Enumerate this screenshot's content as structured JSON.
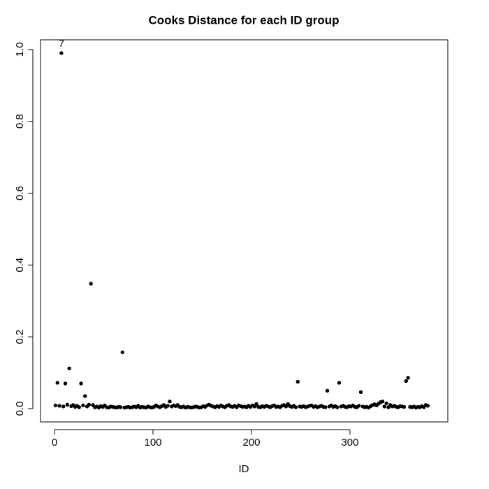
{
  "chart_data": {
    "type": "scatter",
    "title": "Cooks Distance for each ID group",
    "xlabel": "ID",
    "x": [
      1,
      3,
      5,
      7,
      9,
      11,
      13,
      15,
      17,
      19,
      21,
      23,
      25,
      27,
      29,
      31,
      33,
      35,
      37,
      39,
      41,
      43,
      45,
      47,
      49,
      51,
      53,
      55,
      57,
      59,
      61,
      63,
      65,
      67,
      69,
      71,
      73,
      75,
      77,
      79,
      81,
      83,
      85,
      87,
      89,
      91,
      93,
      95,
      97,
      99,
      101,
      103,
      105,
      107,
      109,
      111,
      113,
      115,
      117,
      119,
      121,
      123,
      125,
      127,
      129,
      131,
      133,
      135,
      137,
      139,
      141,
      143,
      145,
      147,
      149,
      151,
      153,
      155,
      157,
      159,
      161,
      163,
      165,
      167,
      169,
      171,
      173,
      175,
      177,
      179,
      181,
      183,
      185,
      187,
      189,
      191,
      193,
      195,
      197,
      199,
      201,
      203,
      205,
      207,
      209,
      211,
      213,
      215,
      217,
      219,
      221,
      223,
      225,
      227,
      229,
      231,
      233,
      235,
      237,
      239,
      241,
      243,
      245,
      247,
      249,
      251,
      253,
      255,
      257,
      259,
      261,
      263,
      265,
      267,
      269,
      271,
      273,
      275,
      277,
      279,
      281,
      283,
      285,
      287,
      289,
      291,
      293,
      295,
      297,
      299,
      301,
      303,
      305,
      307,
      309,
      311,
      313,
      315,
      317,
      319,
      321,
      323,
      325,
      327,
      329,
      331,
      333,
      335,
      337,
      339,
      341,
      343,
      345,
      347,
      349,
      351,
      353,
      355,
      357,
      359,
      361,
      363,
      365,
      367,
      369,
      371,
      373,
      375,
      377,
      379
    ],
    "y": [
      0.009,
      0.072,
      0.008,
      0.99,
      0.006,
      0.07,
      0.011,
      0.112,
      0.007,
      0.01,
      0.005,
      0.008,
      0.004,
      0.07,
      0.009,
      0.035,
      0.006,
      0.011,
      0.348,
      0.01,
      0.004,
      0.006,
      0.003,
      0.007,
      0.005,
      0.009,
      0.004,
      0.003,
      0.006,
      0.005,
      0.004,
      0.003,
      0.005,
      0.004,
      0.157,
      0.003,
      0.004,
      0.005,
      0.003,
      0.004,
      0.006,
      0.004,
      0.008,
      0.003,
      0.005,
      0.004,
      0.003,
      0.006,
      0.004,
      0.003,
      0.005,
      0.009,
      0.006,
      0.004,
      0.007,
      0.01,
      0.005,
      0.008,
      0.02,
      0.006,
      0.009,
      0.007,
      0.01,
      0.005,
      0.004,
      0.006,
      0.003,
      0.005,
      0.004,
      0.003,
      0.004,
      0.006,
      0.005,
      0.003,
      0.004,
      0.007,
      0.005,
      0.009,
      0.011,
      0.008,
      0.006,
      0.004,
      0.007,
      0.005,
      0.009,
      0.006,
      0.004,
      0.008,
      0.01,
      0.006,
      0.005,
      0.008,
      0.004,
      0.009,
      0.007,
      0.005,
      0.006,
      0.004,
      0.008,
      0.005,
      0.009,
      0.006,
      0.013,
      0.005,
      0.004,
      0.007,
      0.005,
      0.008,
      0.006,
      0.004,
      0.007,
      0.009,
      0.005,
      0.006,
      0.004,
      0.008,
      0.01,
      0.006,
      0.013,
      0.007,
      0.005,
      0.008,
      0.004,
      0.075,
      0.006,
      0.005,
      0.007,
      0.004,
      0.006,
      0.008,
      0.009,
      0.005,
      0.007,
      0.004,
      0.006,
      0.008,
      0.005,
      0.004,
      0.05,
      0.006,
      0.009,
      0.005,
      0.007,
      0.004,
      0.072,
      0.006,
      0.008,
      0.005,
      0.004,
      0.007,
      0.006,
      0.009,
      0.005,
      0.004,
      0.008,
      0.046,
      0.006,
      0.004,
      0.005,
      0.003,
      0.007,
      0.01,
      0.012,
      0.009,
      0.014,
      0.018,
      0.02,
      0.006,
      0.015,
      0.004,
      0.01,
      0.006,
      0.008,
      0.005,
      0.004,
      0.007,
      0.006,
      0.005,
      0.077,
      0.086,
      0.005,
      0.004,
      0.006,
      0.003,
      0.005,
      0.004,
      0.007,
      0.004,
      0.01,
      0.008
    ],
    "color": "#000000",
    "annotations": [
      {
        "text": "7",
        "x": 7,
        "y": 0.99
      }
    ],
    "xlim": [
      -14.2,
      399.3
    ],
    "ylim": [
      -0.037,
      1.027
    ],
    "xticks": [
      0,
      100,
      200,
      300
    ],
    "yticks": [
      {
        "value": 0,
        "label": "0.0"
      },
      0.2,
      0.4,
      0.6,
      0.8,
      {
        "value": 1,
        "label": "1.0"
      }
    ]
  }
}
